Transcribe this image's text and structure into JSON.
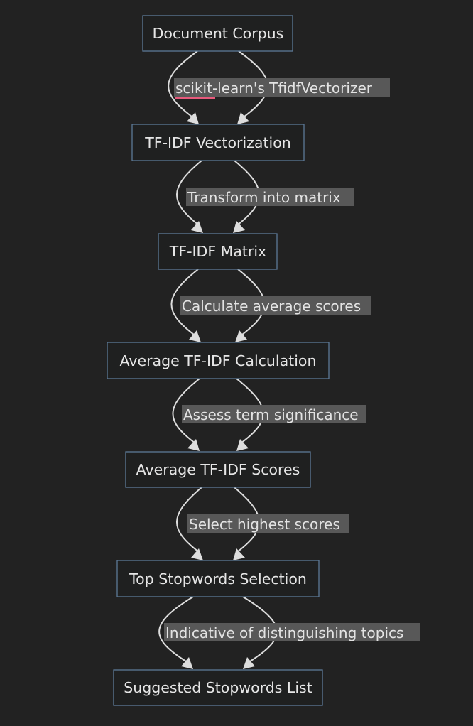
{
  "nodes": [
    {
      "id": "corpus",
      "label": "Document Corpus"
    },
    {
      "id": "vectorization",
      "label": "TF-IDF Vectorization"
    },
    {
      "id": "matrix",
      "label": "TF-IDF Matrix"
    },
    {
      "id": "avg_calc",
      "label": "Average TF-IDF Calculation"
    },
    {
      "id": "avg_scores",
      "label": "Average TF-IDF Scores"
    },
    {
      "id": "top_selection",
      "label": "Top Stopwords Selection"
    },
    {
      "id": "suggested_list",
      "label": "Suggested Stopwords List"
    }
  ],
  "edges": [
    {
      "from": "corpus",
      "to": "vectorization",
      "label": "scikit-learn's TfidfVectorizer"
    },
    {
      "from": "vectorization",
      "to": "matrix",
      "label": "Transform into matrix"
    },
    {
      "from": "matrix",
      "to": "avg_calc",
      "label": "Calculate average scores"
    },
    {
      "from": "avg_calc",
      "to": "avg_scores",
      "label": "Assess term significance"
    },
    {
      "from": "avg_scores",
      "to": "top_selection",
      "label": "Select highest scores"
    },
    {
      "from": "top_selection",
      "to": "suggested_list",
      "label": "Indicative of distinguishing topics"
    }
  ],
  "colors": {
    "background": "#222222",
    "node_fill": "#1f2020",
    "node_border": "#5d7a97",
    "text": "#e6e6e6",
    "edge": "#dddddd",
    "label_background": "#585858",
    "spellcheck_underline": "#e75a7c"
  }
}
